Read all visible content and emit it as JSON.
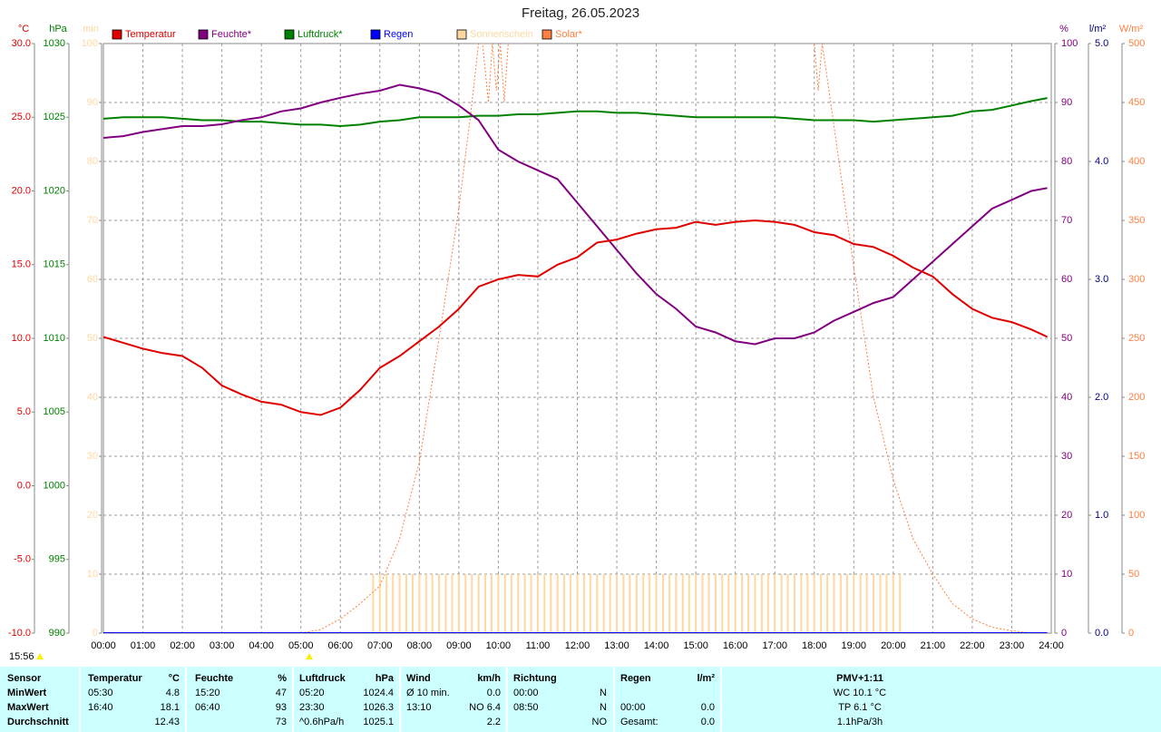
{
  "chart_data": {
    "type": "line",
    "title": "Freitag, 26.05.2023",
    "grid": true,
    "xlim": [
      0,
      24
    ],
    "xticks": [
      {
        "value": 0,
        "label": "00:00"
      },
      {
        "value": 1,
        "label": "01:00"
      },
      {
        "value": 2,
        "label": "02:00"
      },
      {
        "value": 3,
        "label": "03:00"
      },
      {
        "value": 4,
        "label": "04:00"
      },
      {
        "value": 5,
        "label": "05:00"
      },
      {
        "value": 6,
        "label": "06:00"
      },
      {
        "value": 7,
        "label": "07:00"
      },
      {
        "value": 8,
        "label": "08:00"
      },
      {
        "value": 9,
        "label": "09:00"
      },
      {
        "value": 10,
        "label": "10:00"
      },
      {
        "value": 11,
        "label": "11:00"
      },
      {
        "value": 12,
        "label": "12:00"
      },
      {
        "value": 13,
        "label": "13:00"
      },
      {
        "value": 14,
        "label": "14:00"
      },
      {
        "value": 15,
        "label": "15:00"
      },
      {
        "value": 16,
        "label": "16:00"
      },
      {
        "value": 17,
        "label": "17:00"
      },
      {
        "value": 18,
        "label": "18:00"
      },
      {
        "value": 19,
        "label": "19:00"
      },
      {
        "value": 20,
        "label": "20:00"
      },
      {
        "value": 21,
        "label": "21:00"
      },
      {
        "value": 22,
        "label": "22:00"
      },
      {
        "value": 23,
        "label": "23:00"
      },
      {
        "value": 24,
        "label": "24:00"
      }
    ],
    "ylabel": "°C",
    "ycolor": "#e00000",
    "ylim": [
      -10,
      30
    ],
    "yticks": [
      {
        "value": -10,
        "label": "-10.0"
      },
      {
        "value": -5,
        "label": "-5.0"
      },
      {
        "value": 0,
        "label": "0.0"
      },
      {
        "value": 5,
        "label": "5.0"
      },
      {
        "value": 10,
        "label": "10.0"
      },
      {
        "value": 15,
        "label": "15.0"
      },
      {
        "value": 20,
        "label": "20.0"
      },
      {
        "value": 25,
        "label": "25.0"
      },
      {
        "value": 30,
        "label": "30.0"
      }
    ],
    "y2label": "hPa",
    "y2color": "#008000",
    "y2lim": [
      990,
      1030
    ],
    "y2ticks": [
      990,
      995,
      1000,
      1005,
      1010,
      1015,
      1020,
      1025,
      1030
    ],
    "y3label": "min",
    "y3color": "#ffd8a0",
    "y3lim": [
      0,
      100
    ],
    "y3ticks": [
      0,
      10,
      20,
      30,
      40,
      50,
      60,
      70,
      80,
      90,
      100
    ],
    "y4label": "%",
    "y4color": "#800080",
    "y4lim": [
      0,
      100
    ],
    "y4ticks": [
      0,
      10,
      20,
      30,
      40,
      50,
      60,
      70,
      80,
      90,
      100
    ],
    "y5label": "l/m²",
    "y5color": "#000080",
    "y5lim": [
      0,
      5
    ],
    "y5ticks": [
      {
        "value": 0,
        "label": "0.0"
      },
      {
        "value": 1,
        "label": "1.0"
      },
      {
        "value": 2,
        "label": "2.0"
      },
      {
        "value": 3,
        "label": "3.0"
      },
      {
        "value": 4,
        "label": "4.0"
      },
      {
        "value": 5,
        "label": "5.0"
      }
    ],
    "y6label": "W/m²",
    "y6color": "#ff8040",
    "y6lim": [
      0,
      500
    ],
    "y6ticks": [
      0,
      50,
      100,
      150,
      200,
      250,
      300,
      350,
      400,
      450,
      500
    ],
    "x": [
      0,
      0.5,
      1,
      1.5,
      2,
      2.5,
      3,
      3.5,
      4,
      4.5,
      5,
      5.5,
      6,
      6.5,
      7,
      7.5,
      8,
      8.5,
      9,
      9.5,
      10,
      10.5,
      11,
      11.5,
      12,
      12.5,
      13,
      13.5,
      14,
      14.5,
      15,
      15.5,
      16,
      16.5,
      17,
      17.5,
      18,
      18.5,
      19,
      19.5,
      20,
      20.5,
      21,
      21.5,
      22,
      22.5,
      23,
      23.5,
      23.9
    ],
    "series": [
      {
        "name": "Temperatur",
        "color": "#e00000",
        "axis": "y",
        "values": [
          10.1,
          9.7,
          9.3,
          9.0,
          8.8,
          8.0,
          6.8,
          6.2,
          5.7,
          5.5,
          5.0,
          4.8,
          5.3,
          6.5,
          8.0,
          8.8,
          9.8,
          10.8,
          12.0,
          13.5,
          14.0,
          14.3,
          14.2,
          15.0,
          15.5,
          16.5,
          16.7,
          17.1,
          17.4,
          17.5,
          17.9,
          17.7,
          17.9,
          18.0,
          17.9,
          17.7,
          17.2,
          17.0,
          16.4,
          16.2,
          15.6,
          14.8,
          14.2,
          13.0,
          12.0,
          11.4,
          11.1,
          10.6,
          10.1
        ]
      },
      {
        "name": "Feuchte*",
        "color": "#800080",
        "axis": "y4",
        "values": [
          84.0,
          84.3,
          85.0,
          85.5,
          86.0,
          86.0,
          86.3,
          87.0,
          87.5,
          88.5,
          89.0,
          90.0,
          90.8,
          91.5,
          92.0,
          93.0,
          92.4,
          91.5,
          89.5,
          87.0,
          82.0,
          80.0,
          78.5,
          77.0,
          73.0,
          69.0,
          65.0,
          61.0,
          57.5,
          55.0,
          52.0,
          51.0,
          49.5,
          49.0,
          50.0,
          50.0,
          51.0,
          53.0,
          54.5,
          56.0,
          57.0,
          60.0,
          63.0,
          66.0,
          69.0,
          72.0,
          73.5,
          75.0,
          75.5
        ]
      },
      {
        "name": "Luftdruck*",
        "color": "#008000",
        "axis": "y2",
        "values": [
          1024.9,
          1025.0,
          1025.0,
          1025.0,
          1024.9,
          1024.8,
          1024.8,
          1024.7,
          1024.7,
          1024.6,
          1024.5,
          1024.5,
          1024.4,
          1024.5,
          1024.7,
          1024.8,
          1025.0,
          1025.0,
          1025.0,
          1025.1,
          1025.1,
          1025.2,
          1025.2,
          1025.3,
          1025.4,
          1025.4,
          1025.3,
          1025.3,
          1025.2,
          1025.1,
          1025.0,
          1025.0,
          1025.0,
          1025.0,
          1025.0,
          1024.9,
          1024.8,
          1024.8,
          1024.8,
          1024.7,
          1024.8,
          1024.9,
          1025.0,
          1025.1,
          1025.4,
          1025.5,
          1025.8,
          1026.1,
          1026.3
        ]
      },
      {
        "name": "Regen",
        "color": "#0000ff",
        "axis": "y5",
        "values": [
          0,
          0,
          0,
          0,
          0,
          0,
          0,
          0,
          0,
          0,
          0,
          0,
          0,
          0,
          0,
          0,
          0,
          0,
          0,
          0,
          0,
          0,
          0,
          0,
          0,
          0,
          0,
          0,
          0,
          0,
          0,
          0,
          0,
          0,
          0,
          0,
          0,
          0,
          0,
          0,
          0,
          0,
          0,
          0,
          0,
          0,
          0,
          0,
          0
        ]
      },
      {
        "name": "Sonnenschein",
        "color": "#ffd8a0",
        "axis": "y3",
        "type": "bar",
        "x": [
          6.83,
          7,
          7.17,
          7.33,
          7.5,
          7.67,
          7.83,
          8,
          8.17,
          8.33,
          8.5,
          8.67,
          8.83,
          9,
          9.17,
          9.33,
          9.5,
          9.67,
          9.83,
          10,
          10.17,
          10.33,
          10.5,
          10.67,
          10.83,
          11,
          11.17,
          11.33,
          11.5,
          11.67,
          11.83,
          12,
          12.17,
          12.33,
          12.5,
          12.67,
          12.83,
          13,
          13.17,
          13.33,
          13.5,
          13.67,
          13.83,
          14,
          14.17,
          14.33,
          14.5,
          14.67,
          14.83,
          15,
          15.17,
          15.33,
          15.5,
          15.67,
          15.83,
          16,
          16.17,
          16.33,
          16.5,
          16.67,
          16.83,
          17,
          17.17,
          17.33,
          17.5,
          17.67,
          17.83,
          18,
          18.17,
          18.33,
          18.5,
          18.67,
          18.83,
          19,
          19.17,
          19.33,
          19.5,
          19.67,
          19.83,
          20,
          20.17
        ],
        "values": [
          10,
          10,
          10,
          10,
          10,
          10,
          10,
          10,
          10,
          10,
          10,
          10,
          10,
          10,
          10,
          10,
          10,
          10,
          10,
          10,
          10,
          10,
          10,
          10,
          10,
          10,
          10,
          10,
          10,
          10,
          10,
          10,
          10,
          10,
          10,
          10,
          10,
          10,
          10,
          10,
          10,
          10,
          10,
          10,
          10,
          10,
          10,
          10,
          10,
          10,
          10,
          10,
          10,
          10,
          10,
          10,
          10,
          10,
          10,
          10,
          10,
          10,
          10,
          10,
          10,
          10,
          10,
          10,
          10,
          10,
          10,
          10,
          10,
          10,
          10,
          10,
          10,
          10,
          10,
          10,
          10
        ]
      },
      {
        "name": "Solar*",
        "color": "#ff8040",
        "axis": "y6",
        "dashed": true,
        "x": [
          5,
          5.5,
          6,
          6.5,
          7,
          7.5,
          8,
          8.5,
          9,
          9.3,
          9.5,
          9.6,
          9.75,
          9.85,
          9.95,
          10.05,
          10.15,
          10.25,
          14,
          18,
          18.1,
          18.2,
          18.5,
          19,
          19.5,
          20,
          20.5,
          21,
          21.5,
          22,
          22.5,
          23,
          23.5
        ],
        "values": [
          0,
          3,
          12,
          25,
          40,
          80,
          145,
          250,
          360,
          440,
          500,
          500,
          450,
          500,
          460,
          500,
          450,
          500,
          null,
          500,
          460,
          500,
          430,
          310,
          200,
          130,
          80,
          50,
          25,
          12,
          5,
          2,
          0
        ]
      }
    ]
  },
  "time_label": "15:56",
  "table": {
    "header": [
      "Sensor",
      "Temperatur",
      "°C",
      "Feuchte",
      "%",
      "Luftdruck",
      "hPa",
      "Wind",
      "km/h",
      "Richtung",
      null,
      "Regen",
      "l/m²",
      "PMV+1:11"
    ],
    "rows": [
      [
        "MinWert",
        "05:30",
        "4.8",
        "15:20",
        "47",
        "05:20",
        "1024.4",
        "Ø 10 min.",
        "0.0",
        "00:00",
        "N",
        null,
        null,
        "WC 10.1 °C"
      ],
      [
        "MaxWert",
        "16:40",
        "18.1",
        "06:40",
        "93",
        "23:30",
        "1026.3",
        "13:10",
        "NO 6.4",
        "08:50",
        "N",
        "00:00",
        "0.0",
        "TP 6.1 °C"
      ],
      [
        "Durchschnitt",
        null,
        "12.43",
        null,
        "73",
        "^0.6hPa/h",
        "1025.1",
        null,
        "2.2",
        null,
        "NO",
        "Gesamt:",
        "0.0",
        "1.1hPa/3h"
      ]
    ]
  }
}
